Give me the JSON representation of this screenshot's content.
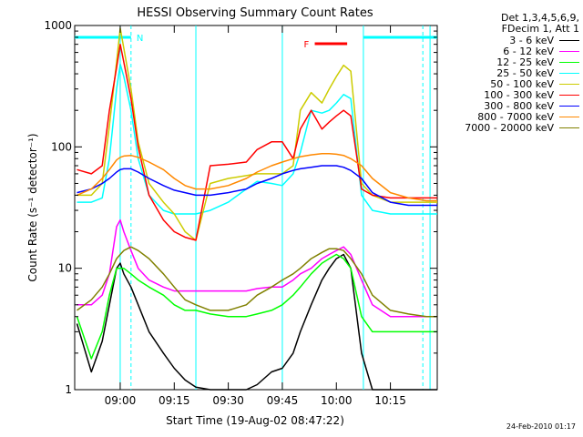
{
  "chart_data": {
    "type": "line",
    "title": "HESSI Observing Summary Count Rates",
    "xlabel": "Start Time (19-Aug-02 08:47:22)",
    "ylabel": "Count Rate (s⁻¹ detector⁻¹)",
    "yscale": "log",
    "ylim": [
      1,
      1000
    ],
    "xlim": [
      "08:47:22",
      "10:28:00"
    ],
    "x_ticks": [
      "09:00",
      "09:15",
      "09:30",
      "09:45",
      "10:00",
      "10:15"
    ],
    "y_ticks": [
      "1",
      "10",
      "100",
      "1000"
    ],
    "grid": false,
    "legend_position": "right-outside",
    "legend_header": [
      "Det 1,3,4,5,6,9,",
      "FDecim 1, Att 1"
    ],
    "annotations": {
      "night_label": "N",
      "night_color": "#00ffff",
      "night_intervals": [
        [
          "08:47:22",
          "09:03:00"
        ],
        [
          "10:07:30",
          "10:28:00"
        ]
      ],
      "flare_label": "F",
      "flare_color": "#ff0000",
      "flare_interval": [
        [
          "09:54:00",
          "10:03:00"
        ]
      ],
      "cyan_vertical_lines": [
        "09:00",
        "09:21",
        "09:45",
        "10:07:30",
        "10:26"
      ],
      "cyan_dashed_lines": [
        "09:03",
        "10:24"
      ]
    },
    "x": [
      "08:48",
      "08:52",
      "08:55",
      "08:57",
      "08:59",
      "09:00",
      "09:01",
      "09:03",
      "09:05",
      "09:08",
      "09:12",
      "09:15",
      "09:18",
      "09:21",
      "09:25",
      "09:30",
      "09:35",
      "09:38",
      "09:42",
      "09:45",
      "09:48",
      "09:50",
      "09:53",
      "09:56",
      "09:58",
      "10:00",
      "10:02",
      "10:04",
      "10:07",
      "10:10",
      "10:15",
      "10:20",
      "10:25",
      "10:28"
    ],
    "series": [
      {
        "name": "3 - 6 keV",
        "color": "#000000",
        "values": [
          3.5,
          1.4,
          2.5,
          5,
          10,
          11,
          9,
          7,
          5,
          3,
          2,
          1.5,
          1.2,
          1.05,
          1.0,
          1.0,
          1.0,
          1.1,
          1.4,
          1.5,
          2,
          3,
          5,
          8,
          10,
          12,
          13,
          10,
          2,
          1.0,
          1.0,
          1.0,
          1.0,
          1.0
        ]
      },
      {
        "name": "6 - 12 keV",
        "color": "#ff00ff",
        "values": [
          5,
          5,
          6,
          9,
          22,
          25,
          20,
          14,
          10,
          8,
          7,
          6.5,
          6.5,
          6.5,
          6.5,
          6.5,
          6.5,
          6.8,
          7,
          7,
          8,
          9,
          10,
          12,
          13,
          14,
          15,
          13,
          8,
          5,
          4,
          4,
          4,
          4
        ]
      },
      {
        "name": "12 - 25 keV",
        "color": "#00ff00",
        "values": [
          4,
          1.8,
          3,
          6,
          10,
          10,
          10,
          9,
          8,
          7,
          6,
          5,
          4.5,
          4.5,
          4.2,
          4,
          4,
          4.2,
          4.5,
          5,
          6,
          7,
          9,
          11,
          12,
          13,
          12,
          10,
          4,
          3,
          3,
          3,
          3,
          3
        ]
      },
      {
        "name": "25 - 50 keV",
        "color": "#00ffff",
        "values": [
          35,
          35,
          38,
          80,
          300,
          480,
          380,
          200,
          80,
          40,
          30,
          28,
          28,
          28,
          30,
          35,
          45,
          52,
          50,
          48,
          60,
          90,
          200,
          190,
          200,
          230,
          270,
          250,
          40,
          30,
          28,
          28,
          28,
          28
        ]
      },
      {
        "name": "50 - 100 keV",
        "color": "#cccc00",
        "values": [
          40,
          40,
          50,
          150,
          500,
          950,
          650,
          300,
          110,
          50,
          35,
          28,
          20,
          17,
          50,
          55,
          58,
          60,
          60,
          60,
          70,
          200,
          280,
          230,
          300,
          380,
          470,
          420,
          50,
          40,
          35,
          35,
          35,
          35
        ]
      },
      {
        "name": "100 - 300 keV",
        "color": "#ff0000",
        "values": [
          65,
          60,
          70,
          200,
          450,
          700,
          500,
          250,
          100,
          40,
          25,
          20,
          18,
          17,
          70,
          72,
          75,
          95,
          110,
          110,
          80,
          140,
          200,
          140,
          160,
          180,
          200,
          180,
          45,
          40,
          38,
          38,
          38,
          38
        ]
      },
      {
        "name": "300 - 800 keV",
        "color": "#0000ff",
        "values": [
          42,
          45,
          50,
          55,
          62,
          65,
          66,
          66,
          62,
          55,
          48,
          44,
          42,
          40,
          40,
          42,
          45,
          50,
          55,
          60,
          64,
          66,
          68,
          70,
          70,
          70,
          68,
          64,
          55,
          42,
          35,
          33,
          33,
          33
        ]
      },
      {
        "name": "800 - 7000 keV",
        "color": "#ff8800",
        "values": [
          40,
          45,
          55,
          65,
          78,
          82,
          84,
          85,
          82,
          75,
          65,
          55,
          48,
          45,
          45,
          48,
          55,
          62,
          70,
          75,
          80,
          83,
          86,
          88,
          88,
          87,
          85,
          80,
          70,
          55,
          42,
          38,
          36,
          36
        ]
      },
      {
        "name": "7000 - 20000 keV",
        "color": "#808000",
        "values": [
          4.5,
          5.5,
          7,
          9,
          12,
          13,
          14,
          15,
          14,
          12,
          9,
          7,
          5.5,
          5,
          4.5,
          4.5,
          5,
          6,
          7,
          8,
          9,
          10,
          12,
          13.5,
          14.5,
          14.5,
          14,
          12,
          9,
          6,
          4.5,
          4.2,
          4,
          4
        ]
      }
    ]
  },
  "footer": {
    "timestamp": "24-Feb-2010 01:17"
  }
}
